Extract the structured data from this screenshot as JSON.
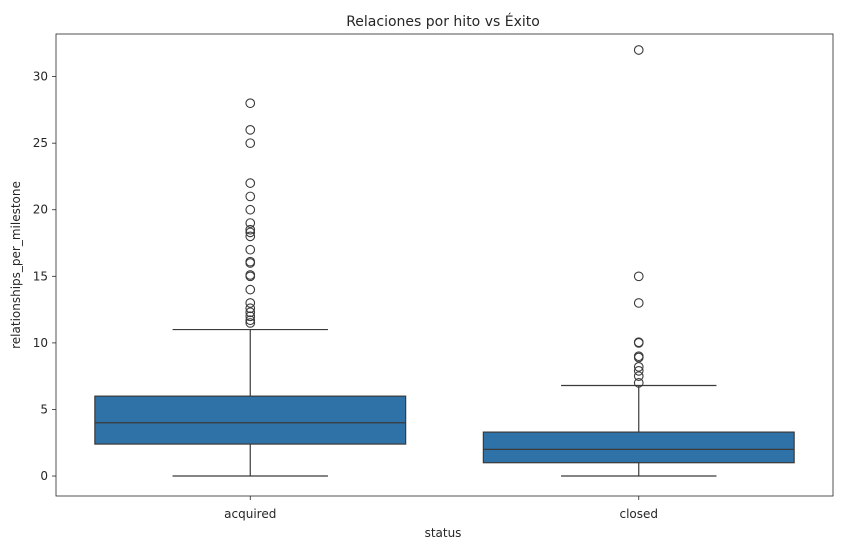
{
  "chart_data": {
    "type": "box",
    "title": "Relaciones por hito vs Éxito",
    "xlabel": "status",
    "ylabel": "relationships_per_milestone",
    "categories": [
      "acquired",
      "closed"
    ],
    "ylim": [
      -1.5,
      33.2
    ],
    "yticks": [
      0,
      5,
      10,
      15,
      20,
      25,
      30
    ],
    "grid": false,
    "box_color": "#2e72a8",
    "line_color": "#3a3a3a",
    "boxes": [
      {
        "category": "acquired",
        "whisker_low": 0,
        "q1": 2.4,
        "median": 4.0,
        "q3": 6.0,
        "whisker_high": 11.0,
        "outliers": [
          11.5,
          11.7,
          12.0,
          12.3,
          12.6,
          13.0,
          14.0,
          15.0,
          15.1,
          16.0,
          16.1,
          17.0,
          18.0,
          18.3,
          18.5,
          19.0,
          20.0,
          21.0,
          22.0,
          25.0,
          26.0,
          28.0
        ]
      },
      {
        "category": "closed",
        "whisker_low": 0,
        "q1": 1.0,
        "median": 2.0,
        "q3": 3.3,
        "whisker_high": 6.8,
        "outliers": [
          7.0,
          7.5,
          7.9,
          8.2,
          8.9,
          9.0,
          10.0,
          10.05,
          13.0,
          15.0,
          32.0
        ]
      }
    ]
  }
}
